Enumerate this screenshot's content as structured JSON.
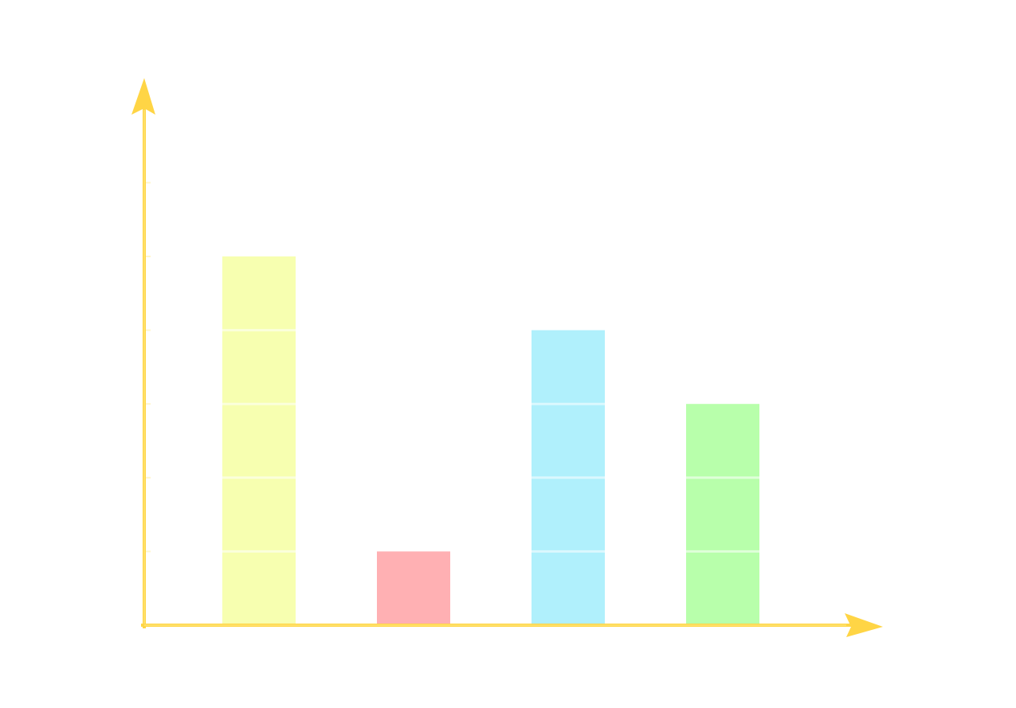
{
  "chart_data": {
    "type": "bar",
    "categories": [
      "",
      "",
      "",
      ""
    ],
    "values": [
      5,
      1,
      4,
      3
    ],
    "ylim": [
      0,
      7
    ],
    "xlabel": "",
    "ylabel": "",
    "title": "",
    "grid": false,
    "colors": {
      "bars": [
        "#f7ffb0",
        "#ffb0b3",
        "#b0f0fc",
        "#b8ffab"
      ],
      "axis": "#ffd545",
      "background": "#ffffff"
    }
  }
}
